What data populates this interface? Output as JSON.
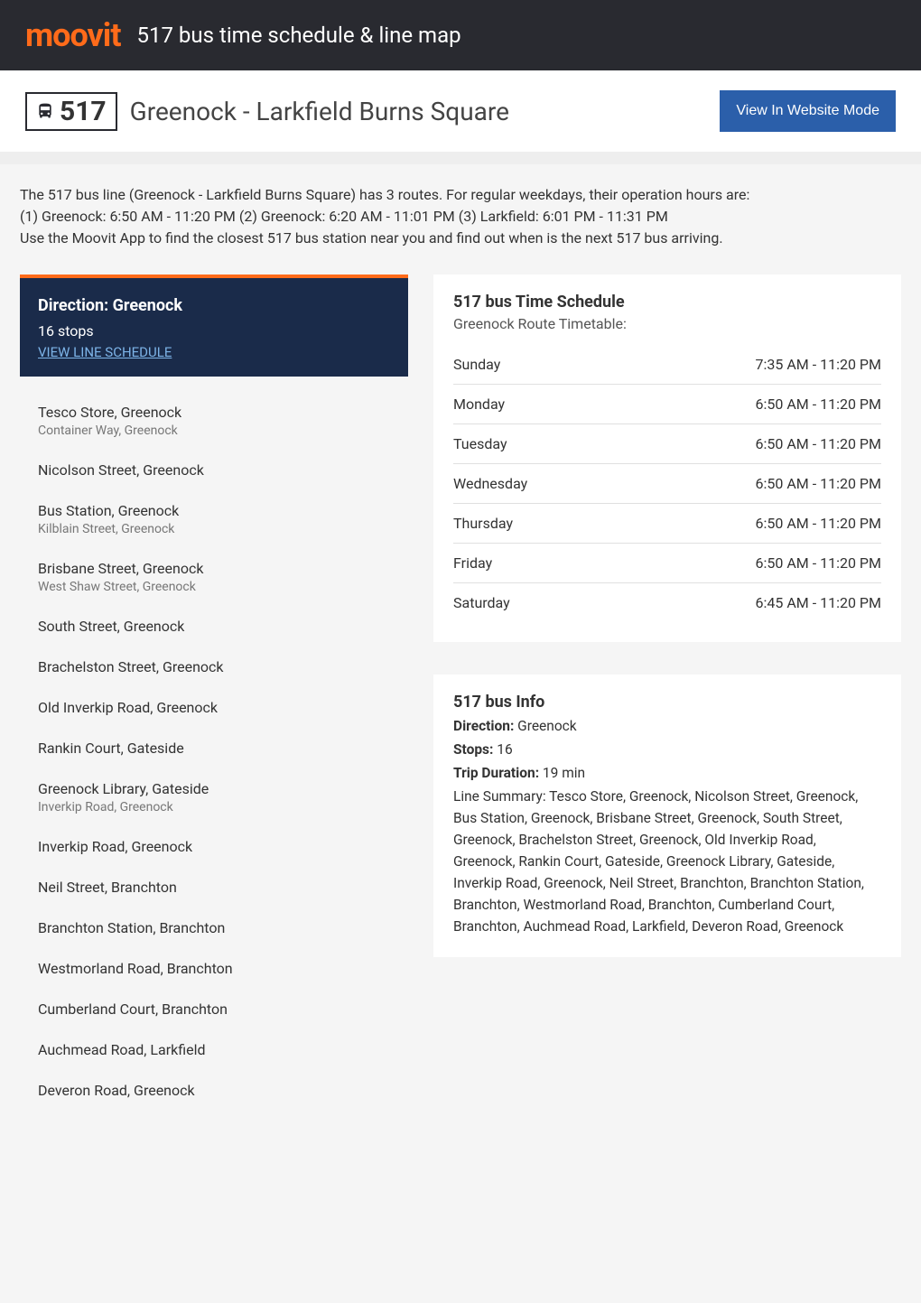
{
  "header": {
    "logo_text": "moovit",
    "title": "517 bus time schedule & line map"
  },
  "subheader": {
    "route_number": "517",
    "route_name": "Greenock - Larkfield Burns Square",
    "view_button": "View In Website Mode"
  },
  "intro": {
    "line1": "The 517 bus line (Greenock - Larkfield Burns Square) has 3 routes. For regular weekdays, their operation hours are:",
    "line2": "(1) Greenock: 6:50 AM - 11:20 PM (2) Greenock: 6:20 AM - 11:01 PM (3) Larkfield: 6:01 PM - 11:31 PM",
    "line3": "Use the Moovit App to find the closest 517 bus station near you and find out when is the next 517 bus arriving."
  },
  "direction": {
    "title": "Direction: Greenock",
    "stops_count": "16 stops",
    "view_schedule": "VIEW LINE SCHEDULE"
  },
  "stops": [
    {
      "name": "Tesco Store, Greenock",
      "sub": "Container Way, Greenock"
    },
    {
      "name": "Nicolson Street, Greenock",
      "sub": ""
    },
    {
      "name": "Bus Station, Greenock",
      "sub": "Kilblain Street, Greenock"
    },
    {
      "name": "Brisbane Street, Greenock",
      "sub": "West Shaw Street, Greenock"
    },
    {
      "name": "South Street, Greenock",
      "sub": ""
    },
    {
      "name": "Brachelston Street, Greenock",
      "sub": ""
    },
    {
      "name": "Old Inverkip Road, Greenock",
      "sub": ""
    },
    {
      "name": "Rankin Court, Gateside",
      "sub": ""
    },
    {
      "name": "Greenock Library, Gateside",
      "sub": "Inverkip Road, Greenock"
    },
    {
      "name": "Inverkip Road, Greenock",
      "sub": ""
    },
    {
      "name": "Neil Street, Branchton",
      "sub": ""
    },
    {
      "name": "Branchton Station, Branchton",
      "sub": ""
    },
    {
      "name": "Westmorland Road, Branchton",
      "sub": ""
    },
    {
      "name": "Cumberland Court, Branchton",
      "sub": ""
    },
    {
      "name": "Auchmead Road, Larkfield",
      "sub": ""
    },
    {
      "name": "Deveron Road, Greenock",
      "sub": ""
    }
  ],
  "schedule": {
    "title": "517 bus Time Schedule",
    "subtitle": "Greenock Route Timetable:",
    "rows": [
      {
        "day": "Sunday",
        "hours": "7:35 AM - 11:20 PM"
      },
      {
        "day": "Monday",
        "hours": "6:50 AM - 11:20 PM"
      },
      {
        "day": "Tuesday",
        "hours": "6:50 AM - 11:20 PM"
      },
      {
        "day": "Wednesday",
        "hours": "6:50 AM - 11:20 PM"
      },
      {
        "day": "Thursday",
        "hours": "6:50 AM - 11:20 PM"
      },
      {
        "day": "Friday",
        "hours": "6:50 AM - 11:20 PM"
      },
      {
        "day": "Saturday",
        "hours": "6:45 AM - 11:20 PM"
      }
    ]
  },
  "info": {
    "title": "517 bus Info",
    "direction_label": "Direction:",
    "direction_value": " Greenock",
    "stops_label": "Stops:",
    "stops_value": " 16",
    "duration_label": "Trip Duration:",
    "duration_value": " 19 min",
    "summary_label": "Line Summary:",
    "summary_value": " Tesco Store, Greenock, Nicolson Street, Greenock, Bus Station, Greenock, Brisbane Street, Greenock, South Street, Greenock, Brachelston Street, Greenock, Old Inverkip Road, Greenock, Rankin Court, Gateside, Greenock Library, Gateside, Inverkip Road, Greenock, Neil Street, Branchton, Branchton Station, Branchton, Westmorland Road, Branchton, Cumberland Court, Branchton, Auchmead Road, Larkfield, Deveron Road, Greenock"
  },
  "colors": {
    "header_bg": "#292a30",
    "accent": "#ff6b1a",
    "button_bg": "#2b5faa",
    "direction_bg": "#1a2b4a",
    "link": "#7db4e8"
  }
}
